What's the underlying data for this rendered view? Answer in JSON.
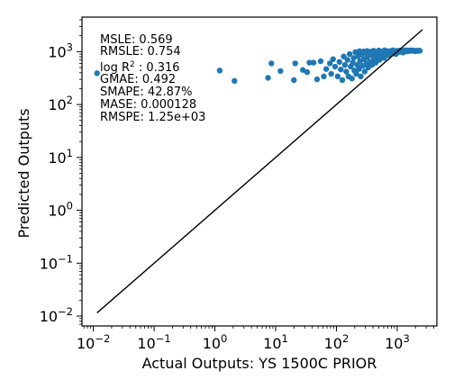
{
  "chart_data": {
    "type": "scatter",
    "xlabel": "Actual Outputs: YS 1500C PRIOR",
    "ylabel": "Predicted Outputs",
    "xscale": "log",
    "yscale": "log",
    "xlim": [
      0.0065,
      4500
    ],
    "ylim": [
      0.0065,
      4500
    ],
    "xticks": [
      {
        "value": 0.01,
        "base": "10",
        "exp": "−2"
      },
      {
        "value": 0.1,
        "base": "10",
        "exp": "−1"
      },
      {
        "value": 1,
        "base": "10",
        "exp": "0"
      },
      {
        "value": 10,
        "base": "10",
        "exp": "1"
      },
      {
        "value": 100,
        "base": "10",
        "exp": "2"
      },
      {
        "value": 1000,
        "base": "10",
        "exp": "3"
      }
    ],
    "yticks": [
      {
        "value": 0.01,
        "base": "10",
        "exp": "−2"
      },
      {
        "value": 0.1,
        "base": "10",
        "exp": "−1"
      },
      {
        "value": 1,
        "base": "10",
        "exp": "0"
      },
      {
        "value": 10,
        "base": "10",
        "exp": "1"
      },
      {
        "value": 100,
        "base": "10",
        "exp": "2"
      },
      {
        "value": 1000,
        "base": "10",
        "exp": "3"
      }
    ],
    "grid": false,
    "point_color": "#1f77b4",
    "identity_line": {
      "from": 0.0115,
      "to": 2600,
      "color": "#000000"
    },
    "metrics": {
      "msle": "MSLE: 0.569",
      "rmsle": "RMSLE: 0.754",
      "logr2_prefix": "log R",
      "logr2_sup": "2",
      "logr2_suffix": " : 0.316",
      "gmae": "GMAE: 0.492",
      "smape": "SMAPE: 42.87%",
      "mase": "MASE: 0.000128",
      "rmspe": "RMSPE: 1.25e+03"
    },
    "points": [
      [
        0.0115,
        390
      ],
      [
        1.2,
        440
      ],
      [
        2.1,
        280
      ],
      [
        7.5,
        320
      ],
      [
        8.5,
        600
      ],
      [
        12,
        430
      ],
      [
        20,
        290
      ],
      [
        21,
        600
      ],
      [
        28,
        450
      ],
      [
        33,
        410
      ],
      [
        36,
        620
      ],
      [
        42,
        620
      ],
      [
        48,
        300
      ],
      [
        55,
        660
      ],
      [
        62,
        340
      ],
      [
        68,
        470
      ],
      [
        78,
        600
      ],
      [
        82,
        380
      ],
      [
        88,
        720
      ],
      [
        95,
        520
      ],
      [
        105,
        340
      ],
      [
        112,
        640
      ],
      [
        118,
        460
      ],
      [
        125,
        290
      ],
      [
        132,
        810
      ],
      [
        138,
        560
      ],
      [
        145,
        420
      ],
      [
        152,
        700
      ],
      [
        158,
        340
      ],
      [
        165,
        900
      ],
      [
        172,
        520
      ],
      [
        180,
        310
      ],
      [
        186,
        620
      ],
      [
        192,
        760
      ],
      [
        198,
        440
      ],
      [
        205,
        980
      ],
      [
        212,
        380
      ],
      [
        220,
        560
      ],
      [
        228,
        820
      ],
      [
        236,
        470
      ],
      [
        244,
        660
      ],
      [
        252,
        340
      ],
      [
        262,
        880
      ],
      [
        272,
        540
      ],
      [
        282,
        720
      ],
      [
        292,
        420
      ],
      [
        302,
        960
      ],
      [
        312,
        600
      ],
      [
        322,
        780
      ],
      [
        334,
        500
      ],
      [
        346,
        880
      ],
      [
        358,
        640
      ],
      [
        370,
        1000
      ],
      [
        384,
        560
      ],
      [
        398,
        820
      ],
      [
        412,
        700
      ],
      [
        428,
        940
      ],
      [
        444,
        620
      ],
      [
        460,
        760
      ],
      [
        476,
        1010
      ],
      [
        494,
        880
      ],
      [
        512,
        700
      ],
      [
        530,
        1000
      ],
      [
        550,
        820
      ],
      [
        570,
        940
      ],
      [
        590,
        1020
      ],
      [
        612,
        760
      ],
      [
        634,
        880
      ],
      [
        656,
        1000
      ],
      [
        680,
        940
      ],
      [
        704,
        1020
      ],
      [
        730,
        860
      ],
      [
        756,
        980
      ],
      [
        784,
        1030
      ],
      [
        812,
        920
      ],
      [
        842,
        1000
      ],
      [
        872,
        1040
      ],
      [
        904,
        960
      ],
      [
        936,
        1020
      ],
      [
        970,
        1000
      ],
      [
        1005,
        1040
      ],
      [
        1040,
        980
      ],
      [
        1080,
        1030
      ],
      [
        1120,
        1050
      ],
      [
        1160,
        1000
      ],
      [
        1200,
        1040
      ],
      [
        1250,
        1020
      ],
      [
        1300,
        1050
      ],
      [
        1350,
        1030
      ],
      [
        1400,
        1060
      ],
      [
        1460,
        1010
      ],
      [
        1520,
        1040
      ],
      [
        1580,
        1050
      ],
      [
        1650,
        1030
      ],
      [
        1720,
        1060
      ],
      [
        1800,
        1040
      ],
      [
        1880,
        1050
      ],
      [
        1960,
        1020
      ],
      [
        2050,
        1040
      ],
      [
        2150,
        1030
      ],
      [
        2250,
        1050
      ],
      [
        2360,
        1040
      ],
      [
        240,
        1020
      ],
      [
        280,
        1010
      ],
      [
        320,
        1030
      ],
      [
        360,
        950
      ],
      [
        410,
        1040
      ],
      [
        450,
        900
      ],
      [
        500,
        1050
      ],
      [
        560,
        980
      ],
      [
        620,
        1060
      ],
      [
        700,
        990
      ],
      [
        760,
        870
      ],
      [
        850,
        1060
      ],
      [
        950,
        900
      ],
      [
        1100,
        990
      ],
      [
        1250,
        960
      ]
    ]
  }
}
